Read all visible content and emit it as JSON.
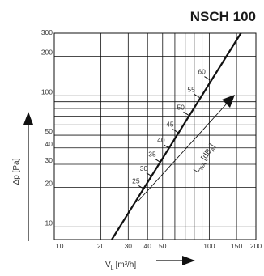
{
  "chart_data": {
    "type": "line",
    "title": "NSCH 100",
    "xlabel": "V",
    "xlabel_subscript": "L",
    "xlabel_unit": "[m³/h]",
    "ylabel": "Δp [Pa]",
    "x_scale": "log",
    "y_scale": "log",
    "xlim": [
      10,
      200
    ],
    "ylim": [
      8,
      300
    ],
    "x_ticks": [
      "10",
      "20",
      "30",
      "40",
      "50",
      "100",
      "150",
      "200"
    ],
    "x_tick_values": [
      10,
      20,
      30,
      40,
      50,
      100,
      150,
      200
    ],
    "y_ticks": [
      "10",
      "20",
      "30",
      "40",
      "50",
      "100",
      "200",
      "300"
    ],
    "y_tick_values": [
      10,
      20,
      30,
      40,
      50,
      100,
      200,
      300
    ],
    "series": [
      {
        "x": [
          23.5,
          160
        ],
        "y": [
          8,
          300
        ]
      }
    ],
    "sound_power_label": "L",
    "sound_power_subscript": "WA",
    "sound_power_unit": "[dB",
    "sound_power_unit_sub": "A",
    "sound_power_unit_end": "]",
    "sound_levels": [
      {
        "label": "25",
        "x": 36.5,
        "y": 20
      },
      {
        "label": "30",
        "x": 41,
        "y": 25
      },
      {
        "label": "35",
        "x": 46.5,
        "y": 32
      },
      {
        "label": "40",
        "x": 53,
        "y": 41
      },
      {
        "label": "45",
        "x": 60.5,
        "y": 54
      },
      {
        "label": "50",
        "x": 71,
        "y": 73
      },
      {
        "label": "55",
        "x": 83,
        "y": 100
      },
      {
        "label": "60",
        "x": 97,
        "y": 136
      }
    ],
    "grid": true,
    "colors": {
      "line": "#111111",
      "grid": "#111111",
      "text": "#333333"
    }
  }
}
